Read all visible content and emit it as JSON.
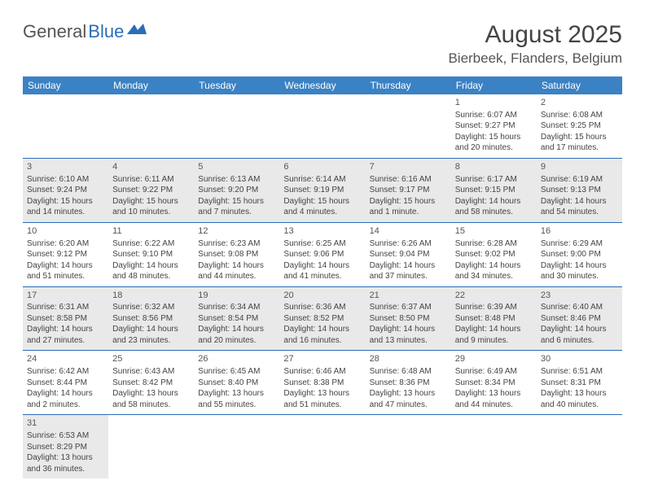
{
  "logo": {
    "part1": "General",
    "part2": "Blue"
  },
  "title": "August 2025",
  "location": "Bierbeek, Flanders, Belgium",
  "colors": {
    "header_bg": "#3b82c4",
    "header_text": "#ffffff",
    "cell_border": "#2a6db8",
    "odd_row_bg": "#e9e9e9",
    "even_row_bg": "#ffffff",
    "text": "#444444"
  },
  "dayHeaders": [
    "Sunday",
    "Monday",
    "Tuesday",
    "Wednesday",
    "Thursday",
    "Friday",
    "Saturday"
  ],
  "weeks": [
    [
      null,
      null,
      null,
      null,
      null,
      {
        "n": "1",
        "sr": "Sunrise: 6:07 AM",
        "ss": "Sunset: 9:27 PM",
        "d1": "Daylight: 15 hours",
        "d2": "and 20 minutes."
      },
      {
        "n": "2",
        "sr": "Sunrise: 6:08 AM",
        "ss": "Sunset: 9:25 PM",
        "d1": "Daylight: 15 hours",
        "d2": "and 17 minutes."
      }
    ],
    [
      {
        "n": "3",
        "sr": "Sunrise: 6:10 AM",
        "ss": "Sunset: 9:24 PM",
        "d1": "Daylight: 15 hours",
        "d2": "and 14 minutes."
      },
      {
        "n": "4",
        "sr": "Sunrise: 6:11 AM",
        "ss": "Sunset: 9:22 PM",
        "d1": "Daylight: 15 hours",
        "d2": "and 10 minutes."
      },
      {
        "n": "5",
        "sr": "Sunrise: 6:13 AM",
        "ss": "Sunset: 9:20 PM",
        "d1": "Daylight: 15 hours",
        "d2": "and 7 minutes."
      },
      {
        "n": "6",
        "sr": "Sunrise: 6:14 AM",
        "ss": "Sunset: 9:19 PM",
        "d1": "Daylight: 15 hours",
        "d2": "and 4 minutes."
      },
      {
        "n": "7",
        "sr": "Sunrise: 6:16 AM",
        "ss": "Sunset: 9:17 PM",
        "d1": "Daylight: 15 hours",
        "d2": "and 1 minute."
      },
      {
        "n": "8",
        "sr": "Sunrise: 6:17 AM",
        "ss": "Sunset: 9:15 PM",
        "d1": "Daylight: 14 hours",
        "d2": "and 58 minutes."
      },
      {
        "n": "9",
        "sr": "Sunrise: 6:19 AM",
        "ss": "Sunset: 9:13 PM",
        "d1": "Daylight: 14 hours",
        "d2": "and 54 minutes."
      }
    ],
    [
      {
        "n": "10",
        "sr": "Sunrise: 6:20 AM",
        "ss": "Sunset: 9:12 PM",
        "d1": "Daylight: 14 hours",
        "d2": "and 51 minutes."
      },
      {
        "n": "11",
        "sr": "Sunrise: 6:22 AM",
        "ss": "Sunset: 9:10 PM",
        "d1": "Daylight: 14 hours",
        "d2": "and 48 minutes."
      },
      {
        "n": "12",
        "sr": "Sunrise: 6:23 AM",
        "ss": "Sunset: 9:08 PM",
        "d1": "Daylight: 14 hours",
        "d2": "and 44 minutes."
      },
      {
        "n": "13",
        "sr": "Sunrise: 6:25 AM",
        "ss": "Sunset: 9:06 PM",
        "d1": "Daylight: 14 hours",
        "d2": "and 41 minutes."
      },
      {
        "n": "14",
        "sr": "Sunrise: 6:26 AM",
        "ss": "Sunset: 9:04 PM",
        "d1": "Daylight: 14 hours",
        "d2": "and 37 minutes."
      },
      {
        "n": "15",
        "sr": "Sunrise: 6:28 AM",
        "ss": "Sunset: 9:02 PM",
        "d1": "Daylight: 14 hours",
        "d2": "and 34 minutes."
      },
      {
        "n": "16",
        "sr": "Sunrise: 6:29 AM",
        "ss": "Sunset: 9:00 PM",
        "d1": "Daylight: 14 hours",
        "d2": "and 30 minutes."
      }
    ],
    [
      {
        "n": "17",
        "sr": "Sunrise: 6:31 AM",
        "ss": "Sunset: 8:58 PM",
        "d1": "Daylight: 14 hours",
        "d2": "and 27 minutes."
      },
      {
        "n": "18",
        "sr": "Sunrise: 6:32 AM",
        "ss": "Sunset: 8:56 PM",
        "d1": "Daylight: 14 hours",
        "d2": "and 23 minutes."
      },
      {
        "n": "19",
        "sr": "Sunrise: 6:34 AM",
        "ss": "Sunset: 8:54 PM",
        "d1": "Daylight: 14 hours",
        "d2": "and 20 minutes."
      },
      {
        "n": "20",
        "sr": "Sunrise: 6:36 AM",
        "ss": "Sunset: 8:52 PM",
        "d1": "Daylight: 14 hours",
        "d2": "and 16 minutes."
      },
      {
        "n": "21",
        "sr": "Sunrise: 6:37 AM",
        "ss": "Sunset: 8:50 PM",
        "d1": "Daylight: 14 hours",
        "d2": "and 13 minutes."
      },
      {
        "n": "22",
        "sr": "Sunrise: 6:39 AM",
        "ss": "Sunset: 8:48 PM",
        "d1": "Daylight: 14 hours",
        "d2": "and 9 minutes."
      },
      {
        "n": "23",
        "sr": "Sunrise: 6:40 AM",
        "ss": "Sunset: 8:46 PM",
        "d1": "Daylight: 14 hours",
        "d2": "and 6 minutes."
      }
    ],
    [
      {
        "n": "24",
        "sr": "Sunrise: 6:42 AM",
        "ss": "Sunset: 8:44 PM",
        "d1": "Daylight: 14 hours",
        "d2": "and 2 minutes."
      },
      {
        "n": "25",
        "sr": "Sunrise: 6:43 AM",
        "ss": "Sunset: 8:42 PM",
        "d1": "Daylight: 13 hours",
        "d2": "and 58 minutes."
      },
      {
        "n": "26",
        "sr": "Sunrise: 6:45 AM",
        "ss": "Sunset: 8:40 PM",
        "d1": "Daylight: 13 hours",
        "d2": "and 55 minutes."
      },
      {
        "n": "27",
        "sr": "Sunrise: 6:46 AM",
        "ss": "Sunset: 8:38 PM",
        "d1": "Daylight: 13 hours",
        "d2": "and 51 minutes."
      },
      {
        "n": "28",
        "sr": "Sunrise: 6:48 AM",
        "ss": "Sunset: 8:36 PM",
        "d1": "Daylight: 13 hours",
        "d2": "and 47 minutes."
      },
      {
        "n": "29",
        "sr": "Sunrise: 6:49 AM",
        "ss": "Sunset: 8:34 PM",
        "d1": "Daylight: 13 hours",
        "d2": "and 44 minutes."
      },
      {
        "n": "30",
        "sr": "Sunrise: 6:51 AM",
        "ss": "Sunset: 8:31 PM",
        "d1": "Daylight: 13 hours",
        "d2": "and 40 minutes."
      }
    ],
    [
      {
        "n": "31",
        "sr": "Sunrise: 6:53 AM",
        "ss": "Sunset: 8:29 PM",
        "d1": "Daylight: 13 hours",
        "d2": "and 36 minutes."
      },
      null,
      null,
      null,
      null,
      null,
      null
    ]
  ]
}
